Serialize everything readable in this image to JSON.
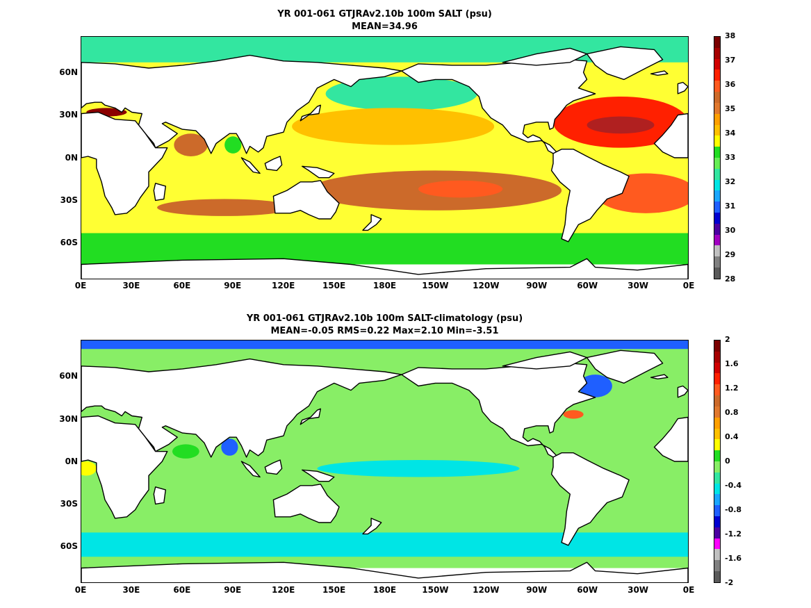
{
  "panels": [
    {
      "title_line1": "YR 001-061 GTJRAv2.10b 100m SALT (psu)",
      "title_line2": "MEAN=34.96",
      "colorbar": {
        "ticks": [
          "38",
          "37",
          "36",
          "35",
          "34",
          "33",
          "32",
          "31",
          "30",
          "29",
          "28"
        ],
        "colors": [
          "#7a0000",
          "#a50000",
          "#d00000",
          "#ff2000",
          "#ff5a1f",
          "#cc6a2a",
          "#e0782e",
          "#ff9f00",
          "#ffc000",
          "#ffff00",
          "#22dd22",
          "#66ee55",
          "#33e6a0",
          "#00e5e5",
          "#1aa6ff",
          "#1f5fff",
          "#0000d0",
          "#4b00a0",
          "#a000c0",
          "#c0c0c0",
          "#808080",
          "#5a5a5a"
        ],
        "range": [
          28,
          38
        ]
      },
      "ocean_base_color": "#ffff33",
      "features": [
        {
          "name": "arctic-band",
          "color": "#33e6a0"
        },
        {
          "name": "north-pacific-subpolar",
          "color": "#33e6a0"
        },
        {
          "name": "north-pacific-gyre",
          "color": "#ffc000"
        },
        {
          "name": "south-pacific-high",
          "color": "#cc6a2a"
        },
        {
          "name": "south-pacific-core",
          "color": "#ff5a1f"
        },
        {
          "name": "north-atlantic-gyre",
          "color": "#ff2000"
        },
        {
          "name": "north-atlantic-core",
          "color": "#b02020"
        },
        {
          "name": "south-atlantic-gyre",
          "color": "#ff5a1f"
        },
        {
          "name": "southern-ocean-band",
          "color": "#22dd22"
        },
        {
          "name": "indian-ocean-band",
          "color": "#cc6a2a"
        },
        {
          "name": "arabian-sea",
          "color": "#cc6a2a"
        },
        {
          "name": "mediterranean",
          "color": "#8b0000"
        },
        {
          "name": "bay-of-bengal",
          "color": "#22dd22"
        }
      ]
    },
    {
      "title_line1": "YR 001-061 GTJRAv2.10b 100m SALT-climatology (psu)",
      "title_line2": "MEAN=-0.05   RMS=0.22   Max=2.10   Min=-3.51",
      "colorbar": {
        "ticks": [
          "2",
          "1.6",
          "1.2",
          "0.8",
          "0.4",
          "0",
          "-0.4",
          "-0.8",
          "-1.2",
          "-1.6",
          "-2"
        ],
        "colors": [
          "#7a0000",
          "#a50000",
          "#d00000",
          "#ff2000",
          "#ff5a1f",
          "#cc6a2a",
          "#e0782e",
          "#ff9f00",
          "#ffc000",
          "#ffff00",
          "#22dd22",
          "#88ee66",
          "#33e6a0",
          "#00e5e5",
          "#1aa6ff",
          "#1f5fff",
          "#0000d0",
          "#4b00a0",
          "#ff00ff",
          "#c0c0c0",
          "#808080",
          "#5a5a5a"
        ],
        "range": [
          -2,
          2
        ]
      },
      "ocean_base_color": "#88ee66",
      "features": [
        {
          "name": "arctic-band",
          "color": "#1f5fff"
        },
        {
          "name": "labrador-anomaly",
          "color": "#1f5fff"
        },
        {
          "name": "gulf-stream-anomaly",
          "color": "#ff5a1f"
        },
        {
          "name": "southern-cyan-band",
          "color": "#00e5e5"
        },
        {
          "name": "tropical-pacific-cyan",
          "color": "#00e5e5"
        },
        {
          "name": "bay-of-bengal-anomaly",
          "color": "#1f5fff"
        },
        {
          "name": "arabian-sea-anomaly",
          "color": "#22dd22"
        },
        {
          "name": "gulf-of-guinea-anomaly",
          "color": "#ffff00"
        }
      ]
    }
  ],
  "y_ticks": [
    "60N",
    "30N",
    "0N",
    "30S",
    "60S"
  ],
  "x_ticks": [
    "0E",
    "30E",
    "60E",
    "90E",
    "120E",
    "150E",
    "180E",
    "150W",
    "120W",
    "90W",
    "60W",
    "30W",
    "0E"
  ]
}
